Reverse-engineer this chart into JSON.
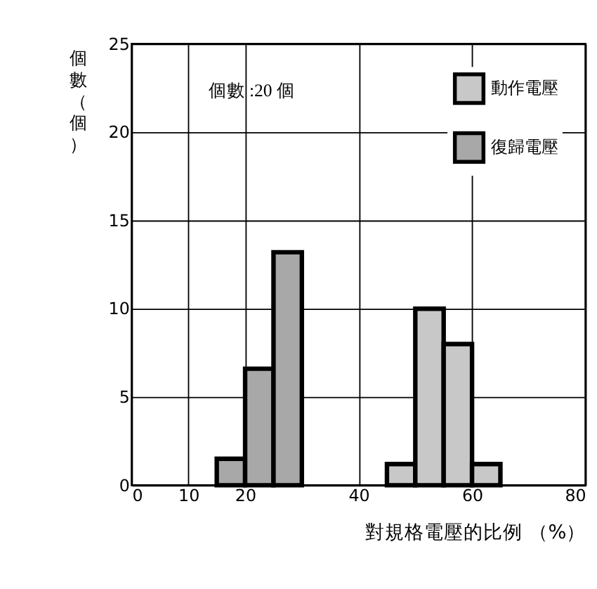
{
  "chart_data": {
    "type": "histogram",
    "xlabel": "對規格電壓的比例 （%）",
    "ylabel": "個數（個）",
    "annotations": [
      "個數 :20 個"
    ],
    "bins": [
      15,
      20,
      25,
      30,
      35,
      40,
      45,
      50,
      55,
      60,
      65
    ],
    "series": [
      {
        "name": "動作電壓",
        "color": "#c8c8c8",
        "values": [
          null,
          null,
          null,
          null,
          null,
          null,
          1.2,
          10,
          8,
          1.2
        ]
      },
      {
        "name": "復歸電壓",
        "color": "#a8a8a8",
        "values": [
          1.5,
          6.6,
          13.2,
          null,
          null,
          null,
          null,
          null,
          null,
          null
        ]
      }
    ],
    "xlim": [
      0,
      80
    ],
    "xticks": [
      0,
      10,
      20,
      40,
      60,
      80
    ],
    "ylim": [
      0,
      25
    ],
    "yticks": [
      0,
      5,
      10,
      15,
      20,
      25
    ],
    "grid": true,
    "legend": "top right"
  }
}
